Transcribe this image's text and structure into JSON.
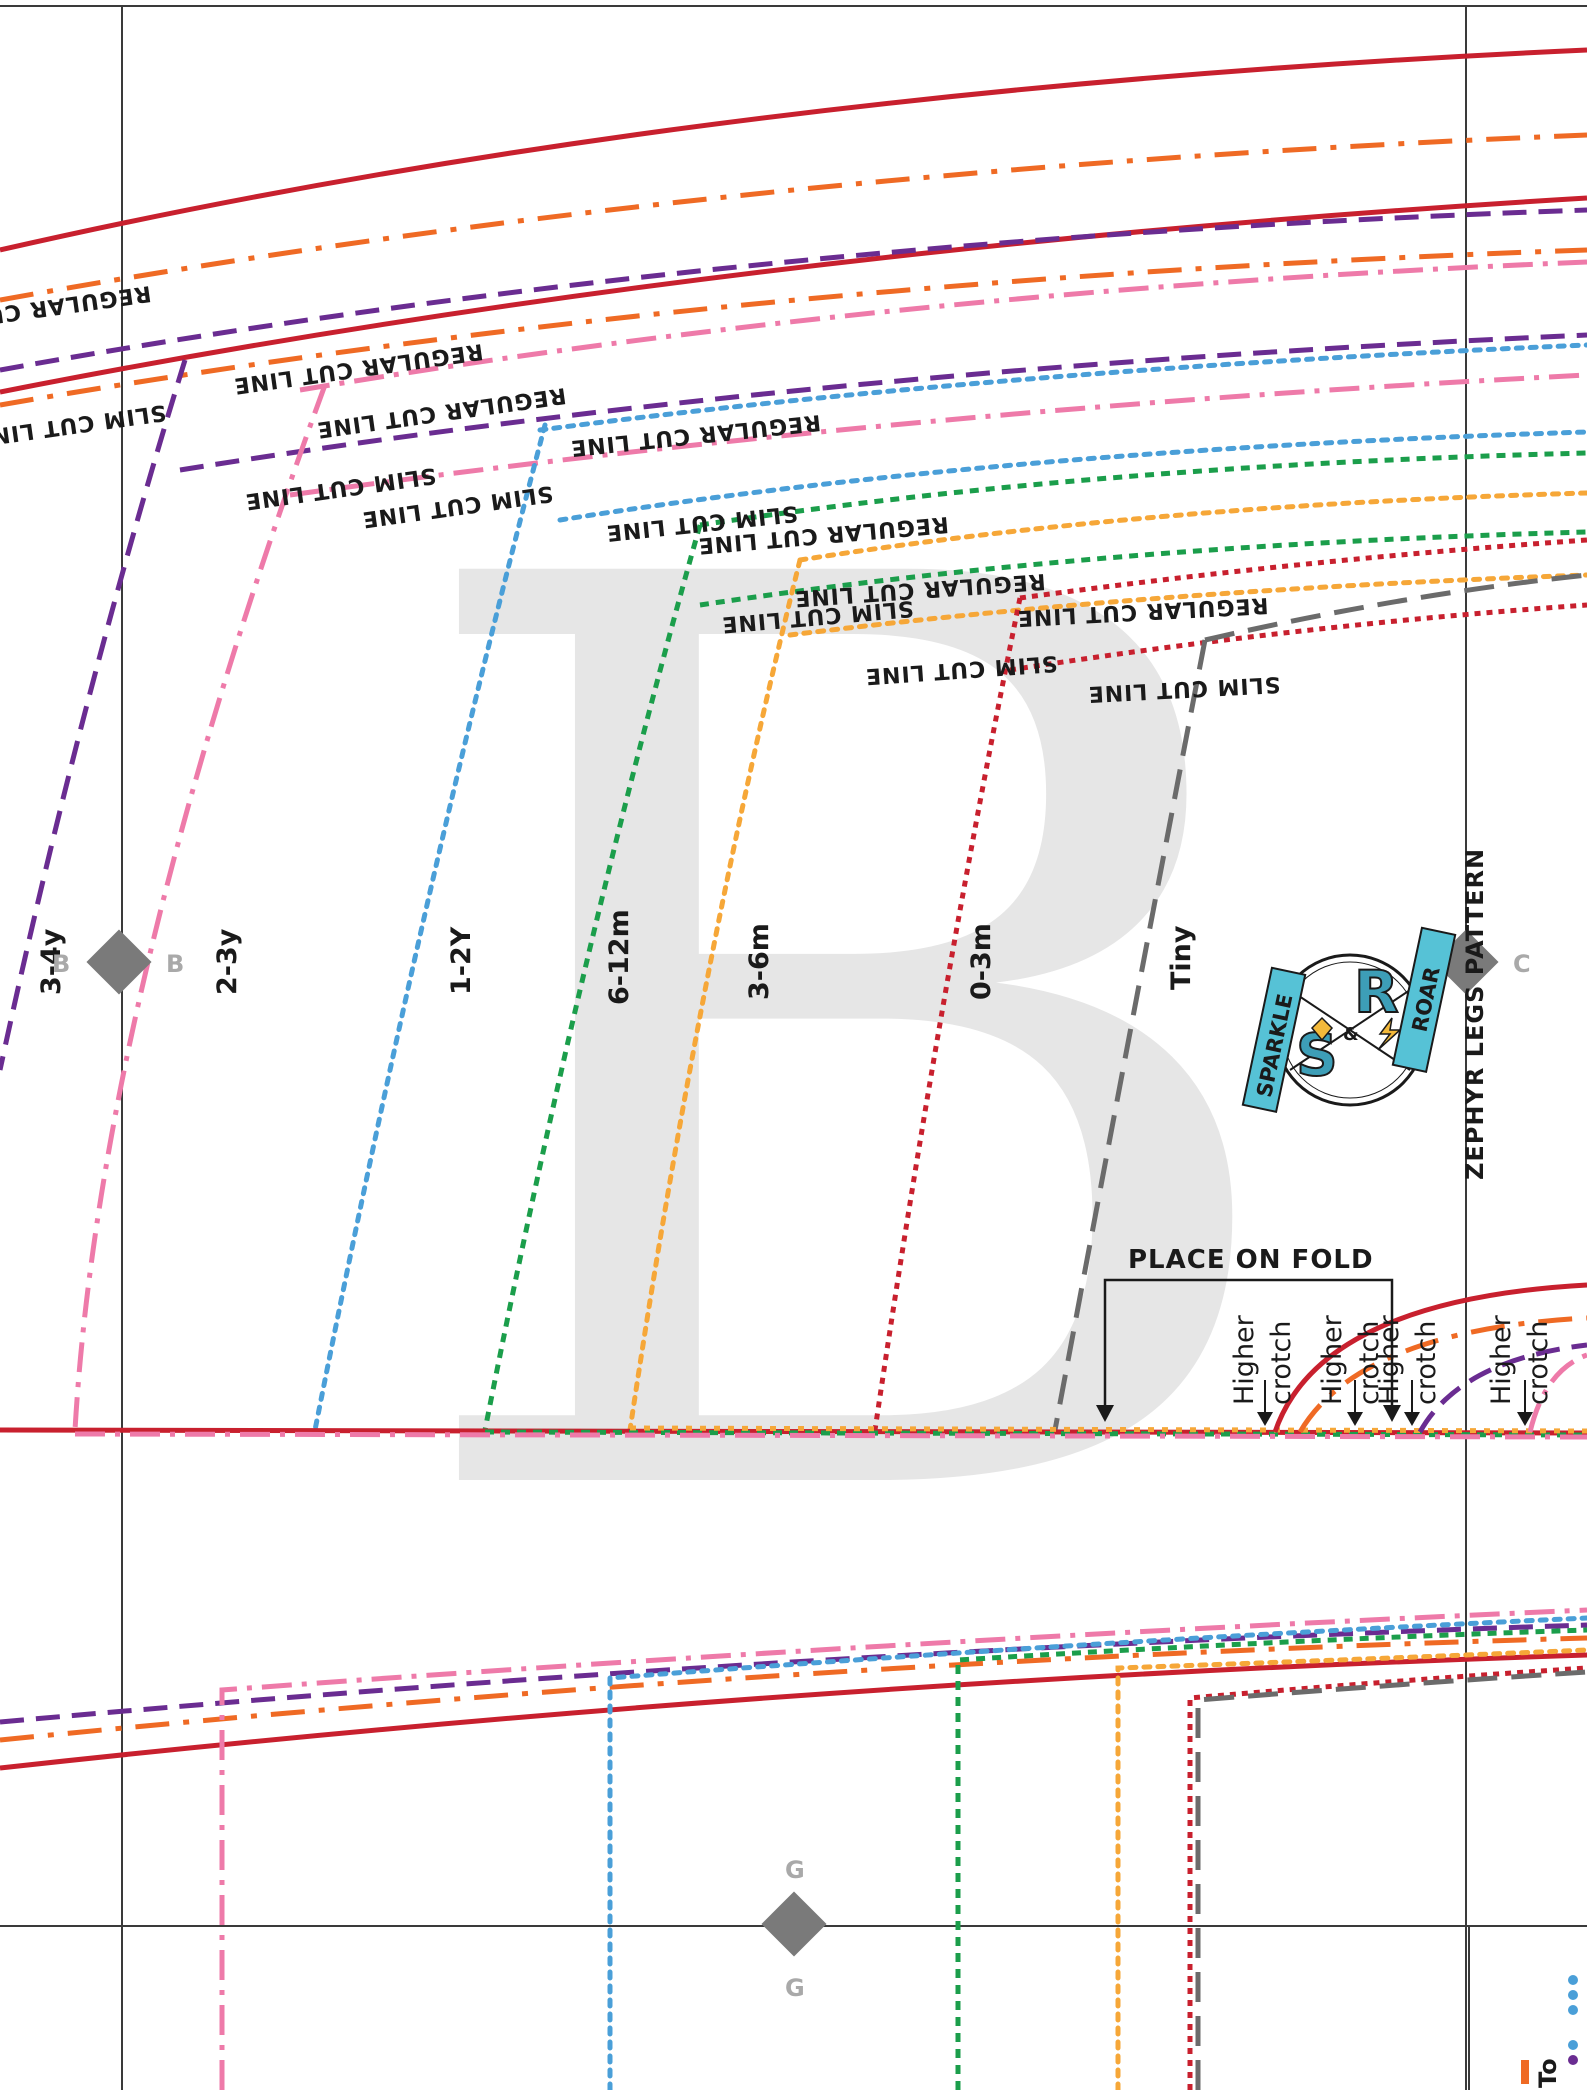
{
  "sheet": {
    "piece_letter": "B",
    "pattern_name": "ZEPHYR LEGS PATTERN",
    "fold_instruction": "PLACE ON FOLD",
    "regular_cut_label": "REGULAR CUT LINE",
    "slim_cut_label": "SLIM CUT LINE",
    "crotch_label_line1": "Higher",
    "crotch_label_line2": "crotch",
    "footer_partial_text": "To"
  },
  "sizes": [
    {
      "label": "3-4y",
      "color": "#6a2c91",
      "style": "dashed"
    },
    {
      "label": "2-3y",
      "color": "#ee7aa9",
      "style": "dash-dot"
    },
    {
      "label": "1-2Y",
      "color": "#4a9fd8",
      "style": "dotted"
    },
    {
      "label": "6-12m",
      "color": "#1b9e4b",
      "style": "short-dash"
    },
    {
      "label": "3-6m",
      "color": "#f6a738",
      "style": "dotted"
    },
    {
      "label": "0-3m",
      "color": "#c8202e",
      "style": "dotted"
    },
    {
      "label": "Tiny",
      "color": "#6b6b6b",
      "style": "long-dash"
    }
  ],
  "outer_lines": [
    {
      "color": "#c8202e",
      "style": "solid"
    },
    {
      "color": "#ef6a24",
      "style": "dash-dot"
    }
  ],
  "match_points": [
    {
      "letter": "B",
      "letter_2": "B"
    },
    {
      "letter": "C"
    },
    {
      "letter": "G",
      "letter_2": "G"
    }
  ],
  "logo": {
    "left_banner": "SPARKLE",
    "right_banner": "ROAR",
    "monogram_left": "S",
    "monogram_right": "R",
    "ampersand": "&",
    "banner_color": "#56c2d6"
  },
  "colors": {
    "grid": "#3a3a3a",
    "watermark": "#e6e6e6",
    "notch": "#7a7a7a"
  }
}
